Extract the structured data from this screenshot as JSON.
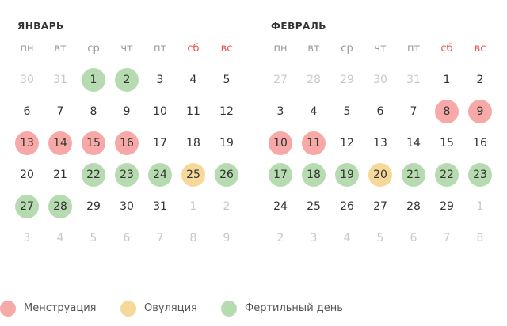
{
  "colors": {
    "menstruation": "#f7a9a8",
    "ovulation": "#f6d89a",
    "fertile": "#b7dbb0",
    "weekend_label": "#e8524f"
  },
  "weekdays": [
    "пн",
    "вт",
    "ср",
    "чт",
    "пт",
    "сб",
    "вс"
  ],
  "months": [
    {
      "title": "ЯНВАРЬ",
      "weeks": [
        [
          {
            "d": "30",
            "m": 1
          },
          {
            "d": "31",
            "m": 1
          },
          {
            "d": "1",
            "t": "fertile"
          },
          {
            "d": "2",
            "t": "fertile"
          },
          {
            "d": "3"
          },
          {
            "d": "4"
          },
          {
            "d": "5"
          }
        ],
        [
          {
            "d": "6"
          },
          {
            "d": "7"
          },
          {
            "d": "8"
          },
          {
            "d": "9"
          },
          {
            "d": "10"
          },
          {
            "d": "11"
          },
          {
            "d": "12"
          }
        ],
        [
          {
            "d": "13",
            "t": "menstruation"
          },
          {
            "d": "14",
            "t": "menstruation"
          },
          {
            "d": "15",
            "t": "menstruation"
          },
          {
            "d": "16",
            "t": "menstruation"
          },
          {
            "d": "17"
          },
          {
            "d": "18"
          },
          {
            "d": "19"
          }
        ],
        [
          {
            "d": "20"
          },
          {
            "d": "21"
          },
          {
            "d": "22",
            "t": "fertile"
          },
          {
            "d": "23",
            "t": "fertile"
          },
          {
            "d": "24",
            "t": "fertile"
          },
          {
            "d": "25",
            "t": "ovulation"
          },
          {
            "d": "26",
            "t": "fertile"
          }
        ],
        [
          {
            "d": "27",
            "t": "fertile"
          },
          {
            "d": "28",
            "t": "fertile"
          },
          {
            "d": "29"
          },
          {
            "d": "30"
          },
          {
            "d": "31"
          },
          {
            "d": "1",
            "m": 1
          },
          {
            "d": "2",
            "m": 1
          }
        ],
        [
          {
            "d": "3",
            "m": 1
          },
          {
            "d": "4",
            "m": 1
          },
          {
            "d": "5",
            "m": 1
          },
          {
            "d": "6",
            "m": 1
          },
          {
            "d": "7",
            "m": 1
          },
          {
            "d": "8",
            "m": 1
          },
          {
            "d": "9",
            "m": 1
          }
        ]
      ]
    },
    {
      "title": "ФЕВРАЛЬ",
      "weeks": [
        [
          {
            "d": "27",
            "m": 1
          },
          {
            "d": "28",
            "m": 1
          },
          {
            "d": "29",
            "m": 1
          },
          {
            "d": "30",
            "m": 1
          },
          {
            "d": "31",
            "m": 1
          },
          {
            "d": "1"
          },
          {
            "d": "2"
          }
        ],
        [
          {
            "d": "3"
          },
          {
            "d": "4"
          },
          {
            "d": "5"
          },
          {
            "d": "6"
          },
          {
            "d": "7"
          },
          {
            "d": "8",
            "t": "menstruation"
          },
          {
            "d": "9",
            "t": "menstruation"
          }
        ],
        [
          {
            "d": "10",
            "t": "menstruation"
          },
          {
            "d": "11",
            "t": "menstruation"
          },
          {
            "d": "12"
          },
          {
            "d": "13"
          },
          {
            "d": "14"
          },
          {
            "d": "15"
          },
          {
            "d": "16"
          }
        ],
        [
          {
            "d": "17",
            "t": "fertile"
          },
          {
            "d": "18",
            "t": "fertile"
          },
          {
            "d": "19",
            "t": "fertile"
          },
          {
            "d": "20",
            "t": "ovulation"
          },
          {
            "d": "21",
            "t": "fertile"
          },
          {
            "d": "22",
            "t": "fertile"
          },
          {
            "d": "23",
            "t": "fertile"
          }
        ],
        [
          {
            "d": "24"
          },
          {
            "d": "25"
          },
          {
            "d": "26"
          },
          {
            "d": "27"
          },
          {
            "d": "28"
          },
          {
            "d": "29"
          },
          {
            "d": "1",
            "m": 1
          }
        ],
        [
          {
            "d": "2",
            "m": 1
          },
          {
            "d": "3",
            "m": 1
          },
          {
            "d": "4",
            "m": 1
          },
          {
            "d": "5",
            "m": 1
          },
          {
            "d": "6",
            "m": 1
          },
          {
            "d": "7",
            "m": 1
          },
          {
            "d": "8",
            "m": 1
          }
        ]
      ]
    }
  ],
  "legend": [
    {
      "key": "menstruation",
      "label": "Менструация"
    },
    {
      "key": "ovulation",
      "label": "Овуляция"
    },
    {
      "key": "fertile",
      "label": "Фертильный день"
    }
  ]
}
